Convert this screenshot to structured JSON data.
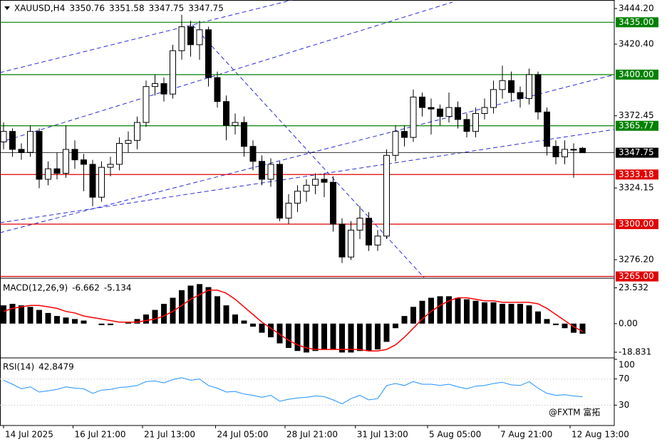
{
  "chart_data": [
    {
      "type": "candlestick",
      "title": "XAUUSD,H4",
      "xlim": [
        -0.4,
        68.56
      ],
      "xticks": [
        {
          "value": 0,
          "label": "14 Jul 2025"
        },
        {
          "value": 7.8,
          "label": "16 Jul 21:00"
        },
        {
          "value": 15.6,
          "label": "21 Jul 13:00"
        },
        {
          "value": 23.8,
          "label": "24 Jul 05:00"
        },
        {
          "value": 31.6,
          "label": "28 Jul 21:00"
        },
        {
          "value": 39.5,
          "label": "31 Jul 13:00"
        },
        {
          "value": 47.6,
          "label": "5 Aug 05:00"
        },
        {
          "value": 55.6,
          "label": "7 Aug 21:00"
        },
        {
          "value": 63.6,
          "label": "12 Aug 13:00"
        }
      ],
      "ylim": [
        3264.3,
        3449.9
      ],
      "yticks": [
        {
          "value": 3444.2,
          "label": "3444.20"
        },
        {
          "value": 3420.4,
          "label": "3420.40"
        },
        {
          "value": 3372.45,
          "label": "3372.45"
        },
        {
          "value": 3324.15,
          "label": "3324.15"
        },
        {
          "value": 3276.2,
          "label": "3276.20"
        }
      ],
      "levels": [
        {
          "value": 3435,
          "label": "3435.00",
          "color": "#008000"
        },
        {
          "value": 3400,
          "label": "3400.00",
          "color": "#008000"
        },
        {
          "value": 3365.77,
          "label": "3365.77",
          "color": "#008000"
        },
        {
          "value": 3333.18,
          "label": "3333.18",
          "color": "#e00000"
        },
        {
          "value": 3300,
          "label": "3300.00",
          "color": "#e00000"
        },
        {
          "value": 3265,
          "label": "3265.00",
          "color": "#e00000"
        }
      ],
      "open": [
        3355,
        3362,
        3350,
        3348,
        3362,
        3330,
        3337,
        3334,
        3350,
        3343,
        3340,
        3318,
        3338,
        3340,
        3354,
        3356,
        3368,
        3392,
        3394,
        3387,
        3416,
        3432,
        3420,
        3430,
        3398,
        3382,
        3366,
        3368,
        3352,
        3342,
        3330,
        3340,
        3304,
        3314,
        3322,
        3326,
        3330,
        3328,
        3300,
        3278,
        3296,
        3304,
        3286,
        3292,
        3346,
        3362,
        3358,
        3385,
        3378,
        3377,
        3372,
        3378,
        3370,
        3362,
        3374,
        3378,
        3390,
        3396,
        3388,
        3384,
        3400,
        3375,
        3352,
        3345,
        3350,
        3350.76
      ],
      "high": [
        3368,
        3364,
        3354,
        3366,
        3364,
        3342,
        3348,
        3366,
        3356,
        3347,
        3343,
        3342,
        3345,
        3358,
        3362,
        3372,
        3396,
        3400,
        3398,
        3420,
        3440,
        3436,
        3436,
        3432,
        3402,
        3386,
        3374,
        3372,
        3356,
        3346,
        3344,
        3342,
        3320,
        3326,
        3330,
        3334,
        3334,
        3332,
        3304,
        3302,
        3312,
        3308,
        3296,
        3350,
        3366,
        3366,
        3390,
        3388,
        3384,
        3380,
        3388,
        3382,
        3374,
        3378,
        3384,
        3396,
        3406,
        3402,
        3392,
        3404,
        3402,
        3378,
        3356,
        3356,
        3354,
        3351.58
      ],
      "low": [
        3350,
        3345,
        3343,
        3345,
        3324,
        3326,
        3330,
        3331,
        3337,
        3322,
        3312,
        3315,
        3332,
        3336,
        3348,
        3350,
        3365,
        3386,
        3382,
        3384,
        3410,
        3412,
        3410,
        3392,
        3378,
        3356,
        3360,
        3345,
        3336,
        3326,
        3325,
        3302,
        3300,
        3308,
        3315,
        3320,
        3318,
        3295,
        3274,
        3276,
        3290,
        3282,
        3282,
        3290,
        3342,
        3352,
        3355,
        3372,
        3360,
        3366,
        3368,
        3364,
        3358,
        3358,
        3370,
        3374,
        3384,
        3382,
        3378,
        3380,
        3370,
        3346,
        3340,
        3340,
        3331,
        3347.75
      ],
      "close": [
        3362,
        3350,
        3348,
        3362,
        3330,
        3337,
        3334,
        3350,
        3343,
        3340,
        3318,
        3338,
        3340,
        3354,
        3356,
        3368,
        3392,
        3394,
        3387,
        3416,
        3432,
        3420,
        3430,
        3398,
        3382,
        3366,
        3368,
        3352,
        3342,
        3330,
        3340,
        3304,
        3314,
        3322,
        3326,
        3330,
        3328,
        3300,
        3278,
        3296,
        3304,
        3286,
        3292,
        3346,
        3362,
        3358,
        3385,
        3378,
        3377,
        3372,
        3378,
        3370,
        3362,
        3374,
        3378,
        3390,
        3396,
        3388,
        3384,
        3400,
        3375,
        3352,
        3345,
        3350,
        3350,
        3347.75
      ]
    },
    {
      "type": "macd",
      "title": "MACD(12,26,9)",
      "ylim": [
        -22.1,
        29.4
      ],
      "yticks": [
        23.532,
        {
          "value": 0,
          "label": "0.00"
        },
        -18.831
      ],
      "series": [
        {
          "name": "MACD",
          "color": "#000000",
          "values": [
            12,
            13,
            12,
            11,
            9,
            7,
            5,
            4,
            3,
            2,
            0,
            -1,
            -1,
            0,
            1,
            3,
            6,
            9,
            13,
            17,
            22,
            25,
            26,
            24,
            18,
            12,
            6,
            2,
            -2,
            -6,
            -9,
            -13,
            -16,
            -18,
            -19,
            -18,
            -17,
            -17,
            -19,
            -19,
            -18,
            -18,
            -17,
            -12,
            -3,
            5,
            11,
            15,
            17,
            18,
            18,
            17,
            16,
            15,
            14,
            14,
            13,
            13,
            13,
            12,
            8,
            3,
            -1,
            -3,
            -6,
            -6.662
          ]
        },
        {
          "name": "Signal",
          "color": "#ff0000",
          "values": [
            8,
            10,
            11,
            12,
            12,
            11,
            10,
            8,
            7,
            5,
            4,
            3,
            2,
            1,
            1,
            1,
            2,
            3,
            5,
            8,
            12,
            16,
            19,
            22,
            22,
            20,
            16,
            11,
            6,
            1,
            -3,
            -7,
            -11,
            -14,
            -16,
            -17,
            -17,
            -17,
            -17,
            -17,
            -17,
            -18,
            -18,
            -17,
            -14,
            -9,
            -3,
            3,
            8,
            12,
            15,
            17,
            17,
            16,
            15,
            15,
            14,
            14,
            14,
            14,
            13,
            10,
            6,
            2,
            -2,
            -5.134
          ]
        }
      ]
    },
    {
      "type": "rsi",
      "title": "RSI(14)",
      "ylim": [
        0,
        100
      ],
      "yticks": [
        100,
        70,
        30
      ],
      "watermark": "@FXTM 富拓",
      "series": [
        {
          "name": "RSI",
          "color": "#1e90ff",
          "values": [
            68,
            62,
            55,
            58,
            50,
            52,
            54,
            58,
            56,
            55,
            48,
            53,
            54,
            57,
            58,
            60,
            66,
            67,
            64,
            69,
            72,
            68,
            70,
            60,
            56,
            50,
            51,
            47,
            45,
            42,
            45,
            36,
            39,
            41,
            42,
            44,
            43,
            38,
            32,
            40,
            45,
            38,
            40,
            60,
            63,
            60,
            66,
            62,
            62,
            60,
            62,
            58,
            55,
            59,
            60,
            63,
            65,
            61,
            60,
            66,
            56,
            48,
            45,
            46,
            44,
            42.8479
          ]
        }
      ]
    }
  ]
}
